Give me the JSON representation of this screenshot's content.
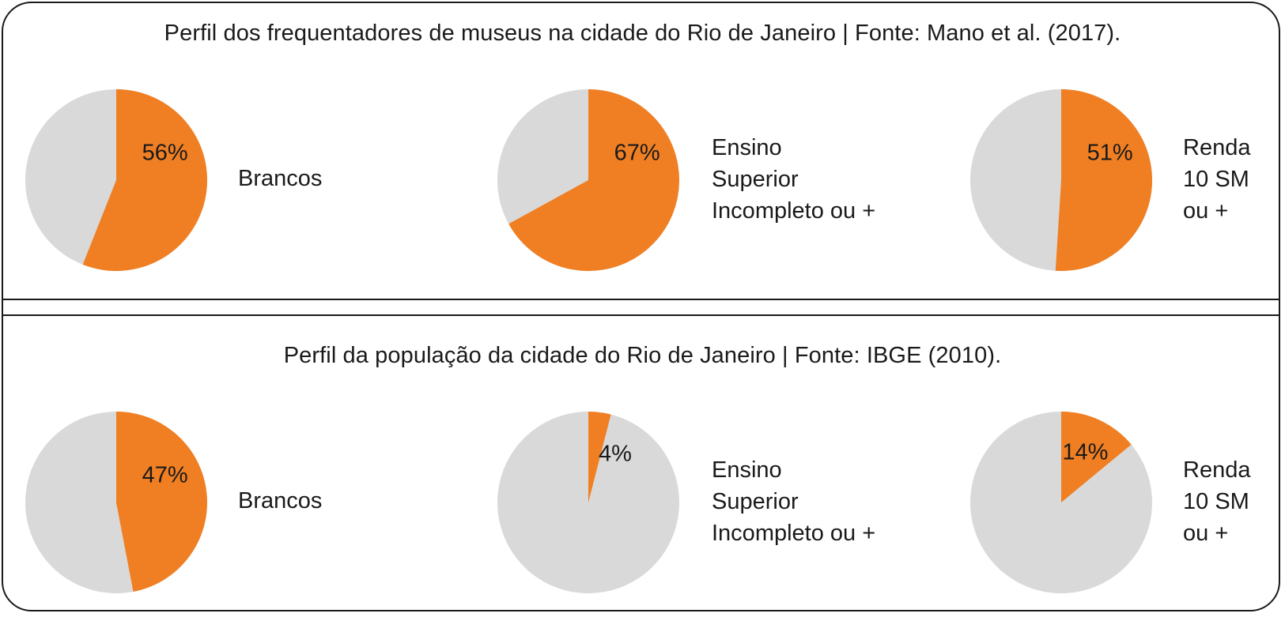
{
  "panels": [
    {
      "title": "Perfil dos frequentadores de museus na cidade do Rio de Janeiro | Fonte: Mano et al. (2017).",
      "pies": [
        {
          "value_label": "56%",
          "caption": [
            "Brancos"
          ]
        },
        {
          "value_label": "67%",
          "caption": [
            "Ensino",
            "Superior",
            "Incompleto ou +"
          ]
        },
        {
          "value_label": "51%",
          "caption": [
            "Renda",
            "10 SM",
            "ou +"
          ]
        }
      ]
    },
    {
      "title": "Perfil da população da cidade do Rio de Janeiro | Fonte: IBGE (2010).",
      "pies": [
        {
          "value_label": "47%",
          "caption": [
            "Brancos"
          ]
        },
        {
          "value_label": "4%",
          "caption": [
            "Ensino",
            "Superior",
            "Incompleto ou +"
          ]
        },
        {
          "value_label": "14%",
          "caption": [
            "Renda",
            "10 SM",
            "ou +"
          ]
        }
      ]
    }
  ],
  "colors": {
    "highlight": "#f07f23",
    "remainder": "#d9d9d9",
    "text": "#1a1a1a"
  },
  "chart_data": [
    {
      "type": "pie",
      "title": "Perfil dos frequentadores de museus na cidade do Rio de Janeiro | Fonte: Mano et al. (2017).",
      "categories": [
        "Brancos"
      ],
      "values": [
        56
      ]
    },
    {
      "type": "pie",
      "title": "Perfil dos frequentadores de museus na cidade do Rio de Janeiro | Fonte: Mano et al. (2017).",
      "categories": [
        "Ensino Superior Incompleto ou +"
      ],
      "values": [
        67
      ]
    },
    {
      "type": "pie",
      "title": "Perfil dos frequentadores de museus na cidade do Rio de Janeiro | Fonte: Mano et al. (2017).",
      "categories": [
        "Renda 10 SM ou +"
      ],
      "values": [
        51
      ]
    },
    {
      "type": "pie",
      "title": "Perfil da população da cidade do Rio de Janeiro | Fonte: IBGE (2010).",
      "categories": [
        "Brancos"
      ],
      "values": [
        47
      ]
    },
    {
      "type": "pie",
      "title": "Perfil da população da cidade do Rio de Janeiro | Fonte: IBGE (2010).",
      "categories": [
        "Ensino Superior Incompleto ou +"
      ],
      "values": [
        4
      ]
    },
    {
      "type": "pie",
      "title": "Perfil da população da cidade do Rio de Janeiro | Fonte: IBGE (2010).",
      "categories": [
        "Renda 10 SM ou +"
      ],
      "values": [
        14
      ]
    }
  ]
}
